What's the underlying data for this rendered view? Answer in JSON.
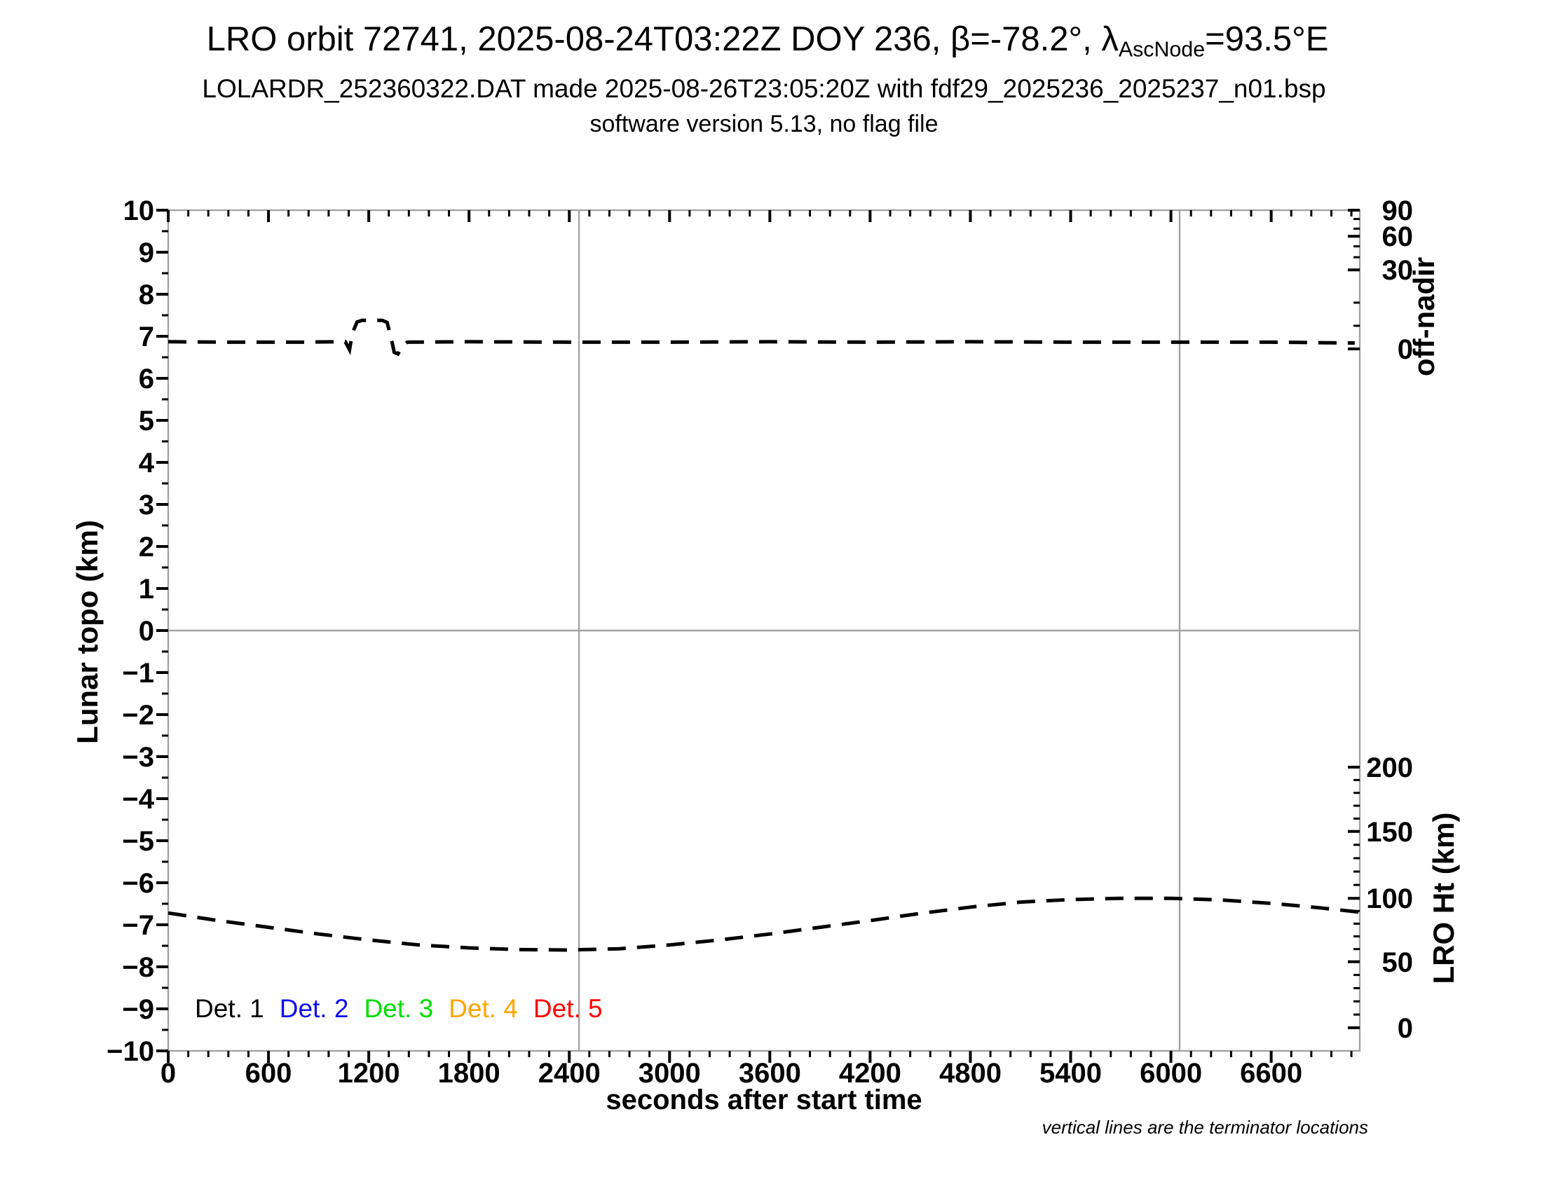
{
  "header": {
    "title_prefix": "LRO orbit 72741, 2025-08-24T03:22Z DOY 236, β=-78.2°, λ",
    "title_sub": "AscNode",
    "title_suffix": "=93.5°E",
    "subtitle": "LOLARDR_252360322.DAT made 2025-08-26T23:05:20Z with fdf29_2025236_2025237_n01.bsp",
    "subsubtitle": "software version 5.13, no flag file"
  },
  "chart_data": {
    "type": "line",
    "title": "LRO orbit 72741, 2025-08-24T03:22Z DOY 236, β=-78.2°, λAscNode=93.5°E",
    "x_axis": {
      "label": "seconds after start time",
      "range": [
        0,
        7130
      ],
      "minor_tick_step": 120,
      "major_ticks": [
        [
          0,
          "0"
        ],
        [
          600,
          "600"
        ],
        [
          1200,
          "1200"
        ],
        [
          1800,
          "1800"
        ],
        [
          2400,
          "2400"
        ],
        [
          3000,
          "3000"
        ],
        [
          3600,
          "3600"
        ],
        [
          4200,
          "4200"
        ],
        [
          4800,
          "4800"
        ],
        [
          5400,
          "5400"
        ],
        [
          6000,
          "6000"
        ],
        [
          6600,
          "6600"
        ]
      ]
    },
    "y_axis": {
      "label": "Lunar topo (km)",
      "range": [
        -10,
        10
      ],
      "minor_tick_step": 0.5,
      "major_ticks": [
        [
          10,
          "10"
        ],
        [
          9,
          "9"
        ],
        [
          8,
          "8"
        ],
        [
          7,
          "7"
        ],
        [
          6,
          "6"
        ],
        [
          5,
          "5"
        ],
        [
          4,
          "4"
        ],
        [
          3,
          "3"
        ],
        [
          2,
          "2"
        ],
        [
          1,
          "1"
        ],
        [
          0,
          "0"
        ],
        [
          -1,
          "−1"
        ],
        [
          -2,
          "−2"
        ],
        [
          -3,
          "−3"
        ],
        [
          -4,
          "−4"
        ],
        [
          -5,
          "−5"
        ],
        [
          -6,
          "−6"
        ],
        [
          -7,
          "−7"
        ],
        [
          -8,
          "−8"
        ],
        [
          -9,
          "−9"
        ],
        [
          -10,
          "−10"
        ]
      ]
    },
    "right_axis_offnadir": {
      "label": "off-nadir",
      "major_ticks": [
        [
          10.0,
          "90"
        ],
        [
          9.38,
          "60"
        ],
        [
          8.58,
          "30"
        ],
        [
          6.7,
          "0"
        ]
      ],
      "minor_ticks_y": [
        9.79,
        9.56,
        9.14,
        8.88,
        7.8,
        7.25
      ]
    },
    "right_axis_height": {
      "label": "LRO Ht (km)",
      "major_ticks": [
        [
          -3.25,
          "200"
        ],
        [
          -4.78,
          "150"
        ],
        [
          -6.37,
          "100"
        ],
        [
          -7.88,
          "50"
        ],
        [
          -9.45,
          "0"
        ]
      ],
      "minors_per_interval": 4
    },
    "zero_line_y": 0,
    "terminator_lines_x": [
      2458,
      6052
    ],
    "footnote": "vertical lines are the terminator locations",
    "legend": [
      {
        "label": "Det. 1",
        "color": "#000000"
      },
      {
        "label": "Det. 2",
        "color": "#0f0fee"
      },
      {
        "label": "Det. 3",
        "color": "#00dd00"
      },
      {
        "label": "Det. 4",
        "color": "#ffa500"
      },
      {
        "label": "Det. 5",
        "color": "#ff0000"
      }
    ],
    "colors": {
      "axis_box": "#a3a3a3",
      "grid": "#a3a3a3",
      "ticks": "#000000",
      "series": "#000000"
    },
    "series": [
      {
        "name": "off-nadir-angle-curve",
        "color": "#000000",
        "style": "dashed",
        "points": [
          [
            0,
            6.87
          ],
          [
            400,
            6.86
          ],
          [
            800,
            6.86
          ],
          [
            1000,
            6.87
          ],
          [
            1060,
            6.87
          ],
          [
            1085,
            6.68
          ],
          [
            1095,
            6.92
          ],
          [
            1110,
            7.15
          ],
          [
            1130,
            7.34
          ],
          [
            1160,
            7.38
          ],
          [
            1280,
            7.38
          ],
          [
            1310,
            7.33
          ],
          [
            1340,
            6.85
          ],
          [
            1352,
            6.62
          ],
          [
            1375,
            6.58
          ],
          [
            1400,
            6.76
          ],
          [
            1430,
            6.86
          ],
          [
            1800,
            6.87
          ],
          [
            2400,
            6.86
          ],
          [
            3000,
            6.86
          ],
          [
            3600,
            6.87
          ],
          [
            4200,
            6.86
          ],
          [
            4800,
            6.87
          ],
          [
            5400,
            6.86
          ],
          [
            6000,
            6.86
          ],
          [
            6600,
            6.86
          ],
          [
            7100,
            6.84
          ]
        ]
      },
      {
        "name": "lro-height-curve",
        "color": "#000000",
        "style": "dashed",
        "points": [
          [
            0,
            -6.72
          ],
          [
            300,
            -6.9
          ],
          [
            600,
            -7.06
          ],
          [
            900,
            -7.22
          ],
          [
            1200,
            -7.36
          ],
          [
            1500,
            -7.48
          ],
          [
            1800,
            -7.55
          ],
          [
            2100,
            -7.59
          ],
          [
            2400,
            -7.6
          ],
          [
            2700,
            -7.57
          ],
          [
            3000,
            -7.48
          ],
          [
            3300,
            -7.36
          ],
          [
            3600,
            -7.22
          ],
          [
            3900,
            -7.06
          ],
          [
            4200,
            -6.9
          ],
          [
            4500,
            -6.73
          ],
          [
            4800,
            -6.58
          ],
          [
            5100,
            -6.46
          ],
          [
            5400,
            -6.4
          ],
          [
            5700,
            -6.37
          ],
          [
            6000,
            -6.37
          ],
          [
            6300,
            -6.41
          ],
          [
            6600,
            -6.49
          ],
          [
            6900,
            -6.6
          ],
          [
            7130,
            -6.7
          ]
        ]
      }
    ]
  }
}
